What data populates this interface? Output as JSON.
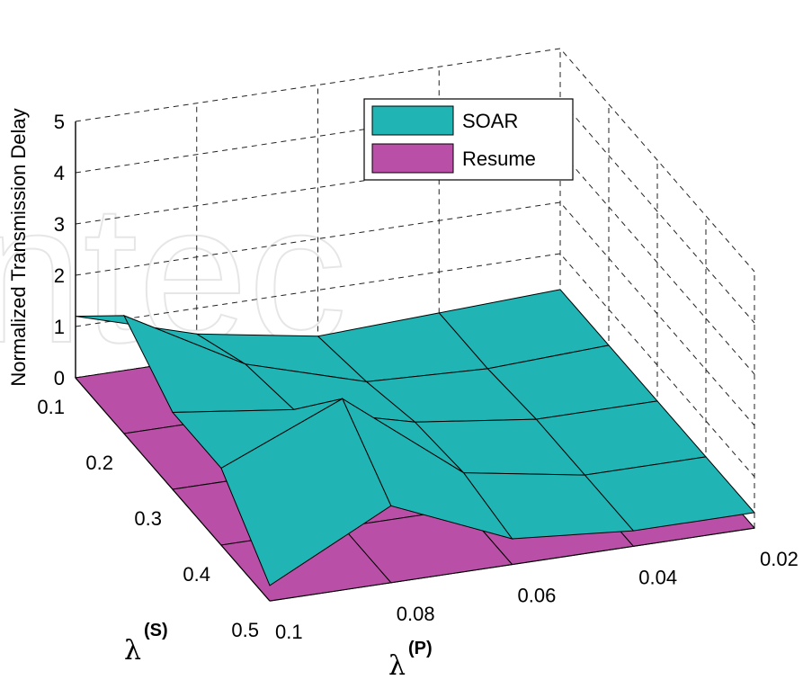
{
  "chart_data": {
    "type": "surface3d",
    "x_axis": {
      "label_symbol": "λ",
      "label_superscript": "(P)",
      "ticks": [
        "0.02",
        "0.04",
        "0.06",
        "0.08",
        "0.1"
      ],
      "values": [
        0.02,
        0.04,
        0.06,
        0.08,
        0.1
      ]
    },
    "y_axis": {
      "label_symbol": "λ",
      "label_superscript": "(S)",
      "ticks": [
        "0.1",
        "0.2",
        "0.3",
        "0.4",
        "0.5"
      ],
      "values": [
        0.1,
        0.2,
        0.3,
        0.4,
        0.5
      ]
    },
    "z_axis": {
      "label": "Normalized Transmission Delay",
      "ticks": [
        "0",
        "1",
        "2",
        "3",
        "4",
        "5"
      ],
      "range": [
        0,
        5
      ]
    },
    "grid": true,
    "legend": {
      "position": "top-center"
    },
    "series": [
      {
        "name": "SOAR",
        "color": "#20b4b4",
        "rows_by_lambda_S": [
          [
            0.3,
            0.2,
            0.1,
            0.5,
            1.2
          ],
          [
            0.3,
            0.2,
            0.3,
            1.0,
            2.3
          ],
          [
            0.3,
            0.3,
            0.6,
            1.2,
            1.5
          ],
          [
            0.3,
            0.3,
            0.7,
            2.5,
            1.5
          ],
          [
            0.3,
            0.3,
            0.5,
            1.5,
            0.3
          ]
        ]
      },
      {
        "name": "Resume",
        "color": "#b94fa6",
        "rows_by_lambda_S": [
          [
            0.0,
            0.0,
            0.0,
            0.0,
            0.0
          ],
          [
            0.0,
            0.0,
            0.0,
            0.0,
            0.0
          ],
          [
            0.0,
            0.0,
            0.0,
            0.0,
            0.0
          ],
          [
            0.0,
            0.0,
            0.0,
            0.0,
            0.0
          ],
          [
            0.0,
            0.0,
            0.0,
            0.0,
            0.0
          ]
        ]
      }
    ]
  }
}
